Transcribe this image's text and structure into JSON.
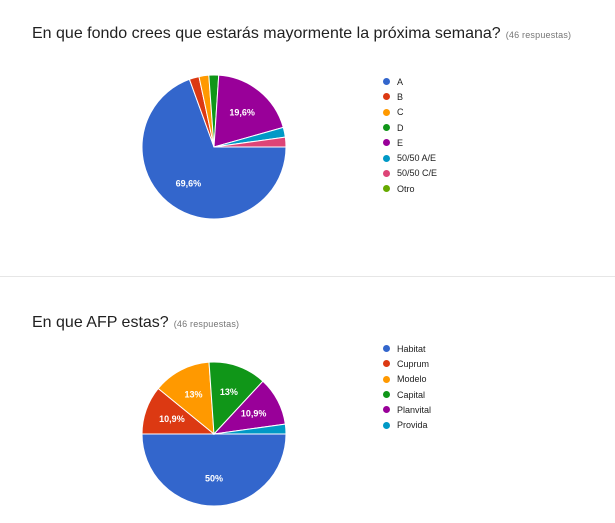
{
  "chart_data": [
    {
      "type": "pie",
      "title": "En que fondo crees que estarás mayormente la próxima semana?",
      "subtitle": "(46 respuestas)",
      "categories": [
        "A",
        "B",
        "C",
        "D",
        "E",
        "50/50 A/E",
        "50/50 C/E",
        "Otro"
      ],
      "values": [
        69.6,
        2.2,
        2.2,
        2.2,
        19.6,
        2.2,
        2.2,
        0
      ],
      "colors": [
        "#3366cc",
        "#dc3912",
        "#ff9900",
        "#109618",
        "#990099",
        "#0099c6",
        "#dd4477",
        "#66aa00"
      ],
      "data_labels": [
        "69,6%",
        "",
        "",
        "",
        "19,6%",
        "",
        "",
        ""
      ],
      "legend": "right"
    },
    {
      "type": "pie",
      "title": "En que AFP estas?",
      "subtitle": "(46 respuestas)",
      "categories": [
        "Habitat",
        "Cuprum",
        "Modelo",
        "Capital",
        "Planvital",
        "Provida"
      ],
      "values": [
        50,
        10.9,
        13,
        13,
        10.9,
        2.2
      ],
      "colors": [
        "#3366cc",
        "#dc3912",
        "#ff9900",
        "#109618",
        "#990099",
        "#0099c6"
      ],
      "data_labels": [
        "50%",
        "10,9%",
        "13%",
        "13%",
        "10,9%",
        ""
      ],
      "legend": "right"
    }
  ]
}
